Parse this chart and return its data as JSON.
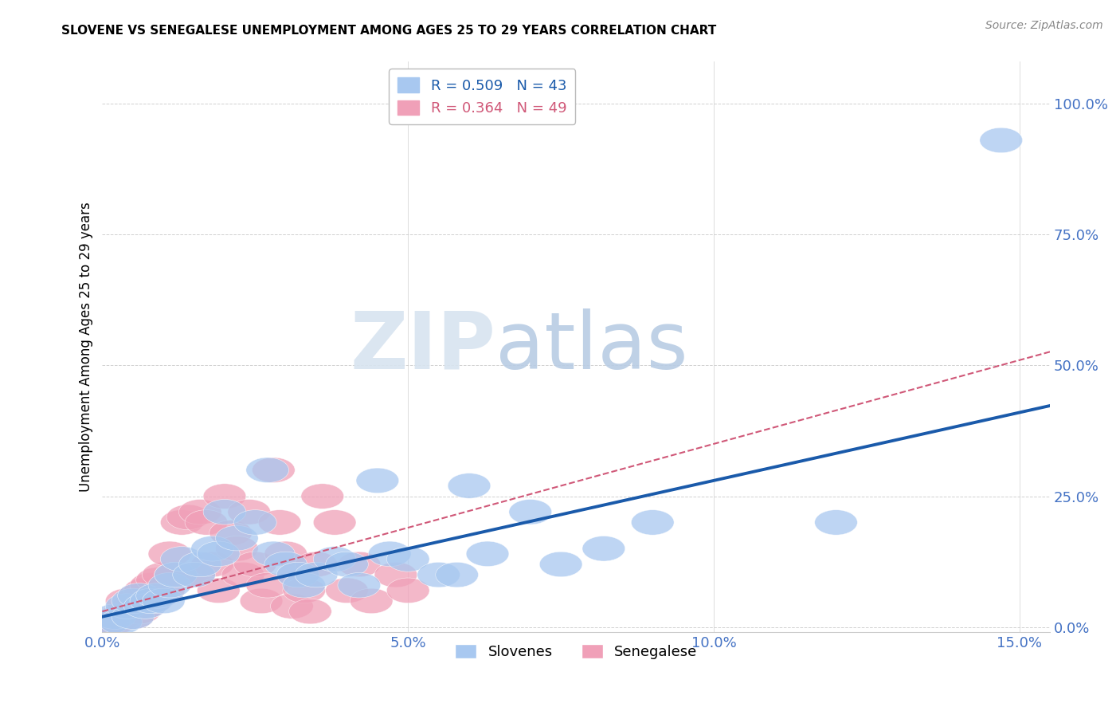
{
  "title": "SLOVENE VS SENEGALESE UNEMPLOYMENT AMONG AGES 25 TO 29 YEARS CORRELATION CHART",
  "source": "Source: ZipAtlas.com",
  "ylabel": "Unemployment Among Ages 25 to 29 years",
  "xlim": [
    0.0,
    0.155
  ],
  "ylim": [
    -0.01,
    1.08
  ],
  "xticks": [
    0.0,
    0.05,
    0.1,
    0.15
  ],
  "xticklabels": [
    "0.0%",
    "5.0%",
    "10.0%",
    "15.0%"
  ],
  "yticks": [
    0.0,
    0.25,
    0.5,
    0.75,
    1.0
  ],
  "yticklabels": [
    "0.0%",
    "25.0%",
    "50.0%",
    "75.0%",
    "100.0%"
  ],
  "slovene_color": "#a8c8f0",
  "senegalese_color": "#f0a0b8",
  "slovene_line_color": "#1a5aaa",
  "senegalese_line_color": "#d05878",
  "R_slovene": 0.509,
  "N_slovene": 43,
  "R_senegalese": 0.364,
  "N_senegalese": 49,
  "slovene_points": [
    [
      0.001,
      0.01
    ],
    [
      0.002,
      0.02
    ],
    [
      0.003,
      0.01
    ],
    [
      0.004,
      0.04
    ],
    [
      0.005,
      0.02
    ],
    [
      0.005,
      0.05
    ],
    [
      0.006,
      0.06
    ],
    [
      0.007,
      0.04
    ],
    [
      0.008,
      0.05
    ],
    [
      0.009,
      0.06
    ],
    [
      0.01,
      0.05
    ],
    [
      0.011,
      0.08
    ],
    [
      0.012,
      0.1
    ],
    [
      0.013,
      0.13
    ],
    [
      0.015,
      0.1
    ],
    [
      0.016,
      0.12
    ],
    [
      0.018,
      0.15
    ],
    [
      0.019,
      0.14
    ],
    [
      0.02,
      0.22
    ],
    [
      0.022,
      0.17
    ],
    [
      0.025,
      0.2
    ],
    [
      0.027,
      0.3
    ],
    [
      0.028,
      0.14
    ],
    [
      0.03,
      0.12
    ],
    [
      0.032,
      0.1
    ],
    [
      0.033,
      0.08
    ],
    [
      0.035,
      0.1
    ],
    [
      0.038,
      0.13
    ],
    [
      0.04,
      0.12
    ],
    [
      0.042,
      0.08
    ],
    [
      0.045,
      0.28
    ],
    [
      0.047,
      0.14
    ],
    [
      0.05,
      0.13
    ],
    [
      0.055,
      0.1
    ],
    [
      0.058,
      0.1
    ],
    [
      0.06,
      0.27
    ],
    [
      0.063,
      0.14
    ],
    [
      0.07,
      0.22
    ],
    [
      0.075,
      0.12
    ],
    [
      0.082,
      0.15
    ],
    [
      0.09,
      0.2
    ],
    [
      0.12,
      0.2
    ],
    [
      0.147,
      0.93
    ]
  ],
  "senegalese_points": [
    [
      0.001,
      0.01
    ],
    [
      0.002,
      0.01
    ],
    [
      0.003,
      0.02
    ],
    [
      0.004,
      0.03
    ],
    [
      0.004,
      0.05
    ],
    [
      0.005,
      0.02
    ],
    [
      0.005,
      0.04
    ],
    [
      0.006,
      0.03
    ],
    [
      0.006,
      0.06
    ],
    [
      0.007,
      0.04
    ],
    [
      0.007,
      0.07
    ],
    [
      0.008,
      0.05
    ],
    [
      0.008,
      0.08
    ],
    [
      0.009,
      0.06
    ],
    [
      0.009,
      0.09
    ],
    [
      0.01,
      0.07
    ],
    [
      0.01,
      0.1
    ],
    [
      0.011,
      0.14
    ],
    [
      0.012,
      0.1
    ],
    [
      0.013,
      0.2
    ],
    [
      0.014,
      0.21
    ],
    [
      0.015,
      0.1
    ],
    [
      0.016,
      0.22
    ],
    [
      0.017,
      0.2
    ],
    [
      0.018,
      0.12
    ],
    [
      0.019,
      0.07
    ],
    [
      0.02,
      0.25
    ],
    [
      0.021,
      0.18
    ],
    [
      0.022,
      0.15
    ],
    [
      0.023,
      0.1
    ],
    [
      0.024,
      0.22
    ],
    [
      0.025,
      0.12
    ],
    [
      0.026,
      0.05
    ],
    [
      0.027,
      0.08
    ],
    [
      0.028,
      0.3
    ],
    [
      0.029,
      0.2
    ],
    [
      0.03,
      0.14
    ],
    [
      0.031,
      0.04
    ],
    [
      0.032,
      0.1
    ],
    [
      0.033,
      0.07
    ],
    [
      0.034,
      0.03
    ],
    [
      0.035,
      0.12
    ],
    [
      0.036,
      0.25
    ],
    [
      0.038,
      0.2
    ],
    [
      0.04,
      0.07
    ],
    [
      0.042,
      0.12
    ],
    [
      0.044,
      0.05
    ],
    [
      0.048,
      0.1
    ],
    [
      0.05,
      0.07
    ]
  ],
  "background_color": "#ffffff",
  "grid_color": "#d0d0d0",
  "tick_color": "#4472c4",
  "slovene_line_intercept": 0.02,
  "slovene_line_slope": 2.6,
  "senegalese_line_intercept": 0.03,
  "senegalese_line_slope": 3.2
}
